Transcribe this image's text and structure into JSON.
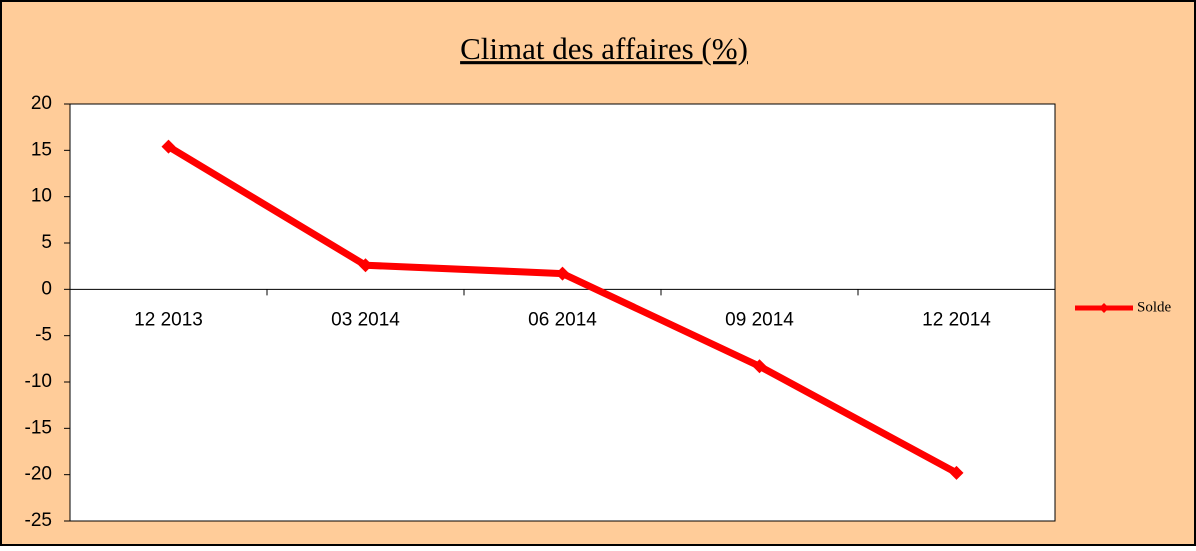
{
  "chart_data": {
    "type": "line",
    "title": "Climat des affaires (%)",
    "categories": [
      "12 2013",
      "03 2014",
      "06 2014",
      "09 2014",
      "12 2014"
    ],
    "series": [
      {
        "name": "Solde",
        "color": "#ff0000",
        "values": [
          15.4,
          2.6,
          1.7,
          -8.3,
          -19.8
        ]
      }
    ],
    "ylim": [
      -25,
      20
    ],
    "yticks": [
      -25,
      -20,
      -15,
      -10,
      -5,
      0,
      5,
      10,
      15,
      20
    ],
    "grid": false,
    "legend": "right"
  }
}
